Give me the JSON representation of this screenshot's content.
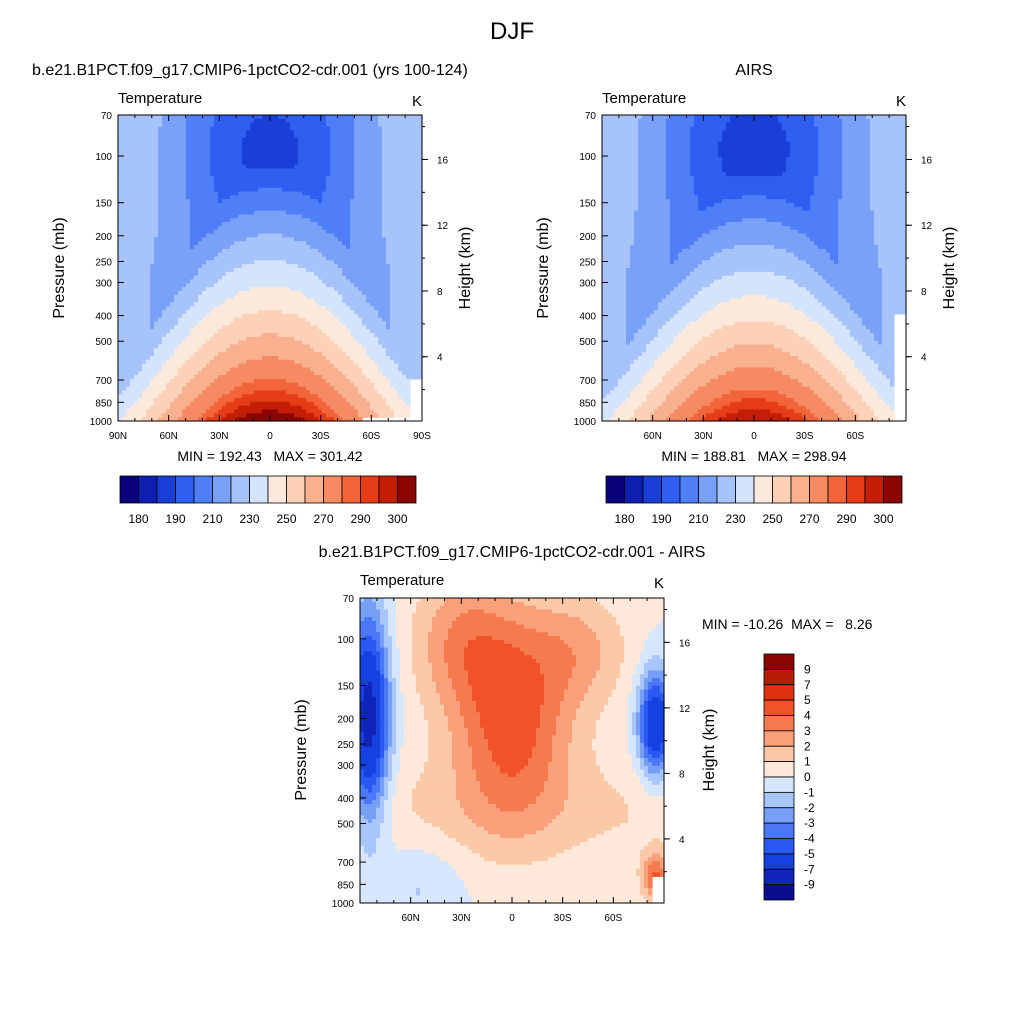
{
  "page": {
    "title": "DJF"
  },
  "colors": {
    "abs_scale": [
      "#08007a",
      "#0c1fb0",
      "#1a3fd6",
      "#2f5ef0",
      "#4f7ef7",
      "#7aa1f8",
      "#a6c3fa",
      "#d4e4fc",
      "#fde9dc",
      "#fcd1b8",
      "#f9b08e",
      "#f68a62",
      "#f2653b",
      "#e53d16",
      "#c41f06",
      "#8b0500"
    ],
    "diff_scale": [
      "#0a0d8f",
      "#0f25b8",
      "#1640e0",
      "#2a58f2",
      "#4a78f6",
      "#76a0f8",
      "#a8c6fb",
      "#d6e6fd",
      "#fee8da",
      "#fcc9a8",
      "#f9a07a",
      "#f57a4e",
      "#f0532a",
      "#e0300f",
      "#b71d05",
      "#8a0500"
    ]
  },
  "chart_data": [
    {
      "type": "heatmap",
      "id": "model",
      "title": "b.e21.B1PCT.f09_g17.CMIP6-1pctCO2-cdr.001 (yrs 100-124)",
      "field_label": "Temperature",
      "units_label": "K",
      "ylabel": "Pressure (mb)",
      "ylabel_right": "Height (km)",
      "x_ticks": [
        "90N",
        "60N",
        "30N",
        "0",
        "30S",
        "60S",
        "90S"
      ],
      "y_ticks": [
        "70",
        "100",
        "150",
        "200",
        "250",
        "300",
        "400",
        "500",
        "700",
        "850",
        "1000"
      ],
      "y_right_ticks": [
        "16",
        "12",
        "8",
        "4"
      ],
      "min": 192.43,
      "max": 301.42,
      "stats_text": "MIN = 192.43   MAX = 301.42",
      "colorbar_ticks": [
        "180",
        "190",
        "210",
        "230",
        "250",
        "270",
        "290",
        "300"
      ],
      "levels": [
        170,
        180,
        185,
        190,
        200,
        210,
        220,
        230,
        240,
        250,
        260,
        270,
        280,
        285,
        290,
        295,
        300
      ]
    },
    {
      "type": "heatmap",
      "id": "obs",
      "title": "AIRS",
      "field_label": "Temperature",
      "units_label": "K",
      "ylabel": "Pressure (mb)",
      "ylabel_right": "Height (km)",
      "x_ticks": [
        "60N",
        "30N",
        "0",
        "30S",
        "60S"
      ],
      "y_ticks": [
        "70",
        "100",
        "150",
        "200",
        "250",
        "300",
        "400",
        "500",
        "700",
        "850",
        "1000"
      ],
      "y_right_ticks": [
        "16",
        "12",
        "8",
        "4"
      ],
      "min": 188.81,
      "max": 298.94,
      "stats_text": "MIN = 188.81   MAX = 298.94",
      "colorbar_ticks": [
        "180",
        "190",
        "210",
        "230",
        "250",
        "270",
        "290",
        "300"
      ]
    },
    {
      "type": "heatmap",
      "id": "diff",
      "title": "b.e21.B1PCT.f09_g17.CMIP6-1pctCO2-cdr.001 - AIRS",
      "field_label": "Temperature",
      "units_label": "K",
      "ylabel": "Pressure (mb)",
      "ylabel_right": "Height (km)",
      "x_ticks": [
        "60N",
        "30N",
        "0",
        "30S",
        "60S"
      ],
      "y_ticks": [
        "70",
        "100",
        "150",
        "200",
        "250",
        "300",
        "400",
        "500",
        "700",
        "850",
        "1000"
      ],
      "y_right_ticks": [
        "16",
        "12",
        "8",
        "4"
      ],
      "min": -10.26,
      "max": 8.26,
      "stats_text": "MIN = -10.26  MAX =   8.26",
      "colorbar_ticks": [
        "9",
        "7",
        "5",
        "4",
        "3",
        "2",
        "1",
        "0",
        "-1",
        "-2",
        "-3",
        "-4",
        "-5",
        "-7",
        "-9"
      ]
    }
  ]
}
